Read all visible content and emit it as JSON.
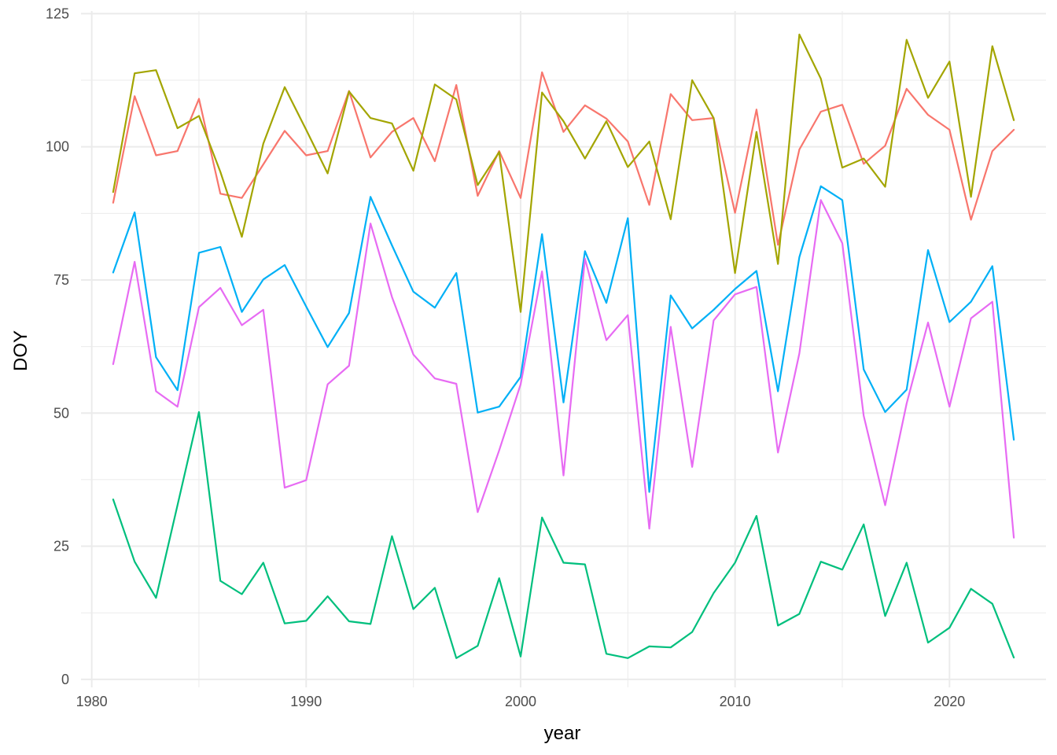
{
  "chart_data": {
    "type": "line",
    "title": "",
    "xlabel": "year",
    "ylabel": "DOY",
    "xlim": [
      1979.5,
      2024.5
    ],
    "ylim": [
      -1.5,
      125.5
    ],
    "x_ticks": [
      1980,
      1990,
      2000,
      2010,
      2020
    ],
    "y_ticks": [
      0,
      25,
      50,
      75,
      100,
      125
    ],
    "x_minor_ticks": [
      1985,
      1995,
      2005,
      2015
    ],
    "y_minor_ticks": [
      12.5,
      37.5,
      62.5,
      87.5,
      112.5
    ],
    "grid": true,
    "legend": "none",
    "x": [
      1981,
      1982,
      1983,
      1984,
      1985,
      1986,
      1987,
      1988,
      1989,
      1990,
      1991,
      1992,
      1993,
      1994,
      1995,
      1996,
      1997,
      1998,
      1999,
      2000,
      2001,
      2002,
      2003,
      2004,
      2005,
      2006,
      2007,
      2008,
      2009,
      2010,
      2011,
      2012,
      2013,
      2014,
      2015,
      2016,
      2017,
      2018,
      2019,
      2020,
      2021,
      2022,
      2023
    ],
    "series": [
      {
        "color": "#F8766D",
        "values": [
          89.5,
          109.5,
          98.4,
          99.2,
          109.0,
          91.2,
          90.4,
          96.7,
          103.0,
          98.4,
          99.2,
          110.5,
          98.0,
          102.8,
          105.4,
          97.3,
          111.6,
          90.8,
          99.2,
          90.4,
          114.0,
          102.8,
          107.8,
          105.3,
          101.0,
          89.1,
          109.9,
          105.0,
          105.4,
          87.6,
          107.0,
          81.6,
          99.5,
          106.6,
          107.9,
          96.8,
          100.2,
          110.9,
          106.0,
          103.2,
          86.3,
          99.2,
          103.2
        ]
      },
      {
        "color": "#A3A500",
        "values": [
          91.5,
          113.8,
          114.4,
          103.5,
          105.8,
          95.3,
          83.1,
          100.6,
          111.2,
          103.2,
          95.0,
          110.4,
          105.4,
          104.4,
          95.5,
          111.7,
          108.9,
          92.8,
          99.0,
          69.0,
          110.2,
          104.8,
          97.8,
          104.8,
          96.2,
          101.0,
          86.4,
          112.5,
          105.4,
          76.3,
          102.8,
          78.0,
          121.1,
          112.8,
          96.1,
          97.8,
          92.5,
          120.1,
          109.2,
          116.0,
          90.6,
          118.9,
          105.0
        ]
      },
      {
        "color": "#00BF7D",
        "values": [
          33.8,
          22.1,
          15.3,
          32.7,
          50.2,
          18.5,
          16.0,
          21.9,
          10.5,
          11.0,
          15.6,
          10.9,
          10.4,
          26.9,
          13.2,
          17.2,
          4.0,
          6.3,
          19.0,
          4.3,
          30.4,
          21.9,
          21.6,
          4.8,
          4.0,
          6.2,
          6.0,
          8.9,
          16.2,
          21.9,
          30.7,
          10.1,
          12.3,
          22.1,
          20.6,
          29.1,
          11.9,
          21.9,
          6.9,
          9.7,
          17.0,
          14.2,
          4.1
        ]
      },
      {
        "color": "#00B0F6",
        "values": [
          76.4,
          87.7,
          60.5,
          54.3,
          80.1,
          81.2,
          69.0,
          75.1,
          77.8,
          70.0,
          62.4,
          68.8,
          90.6,
          81.5,
          72.8,
          69.8,
          76.3,
          50.1,
          51.2,
          56.8,
          83.6,
          52.0,
          80.4,
          70.7,
          86.6,
          35.2,
          72.1,
          65.9,
          69.4,
          73.3,
          76.7,
          54.1,
          79.3,
          92.6,
          90.0,
          58.2,
          50.2,
          54.4,
          80.6,
          67.1,
          70.9,
          77.6,
          45.0
        ]
      },
      {
        "color": "#E76BF3",
        "values": [
          59.2,
          78.4,
          54.1,
          51.2,
          69.9,
          73.5,
          66.5,
          69.4,
          36.0,
          37.4,
          55.4,
          58.9,
          85.6,
          71.8,
          61.0,
          56.5,
          55.5,
          31.4,
          43.0,
          55.4,
          76.6,
          38.3,
          79.0,
          63.7,
          68.4,
          28.3,
          66.2,
          39.9,
          67.4,
          72.3,
          73.7,
          42.6,
          61.2,
          90.0,
          81.9,
          49.5,
          32.7,
          51.8,
          67.0,
          51.2,
          67.8,
          70.9,
          26.6
        ]
      }
    ]
  }
}
